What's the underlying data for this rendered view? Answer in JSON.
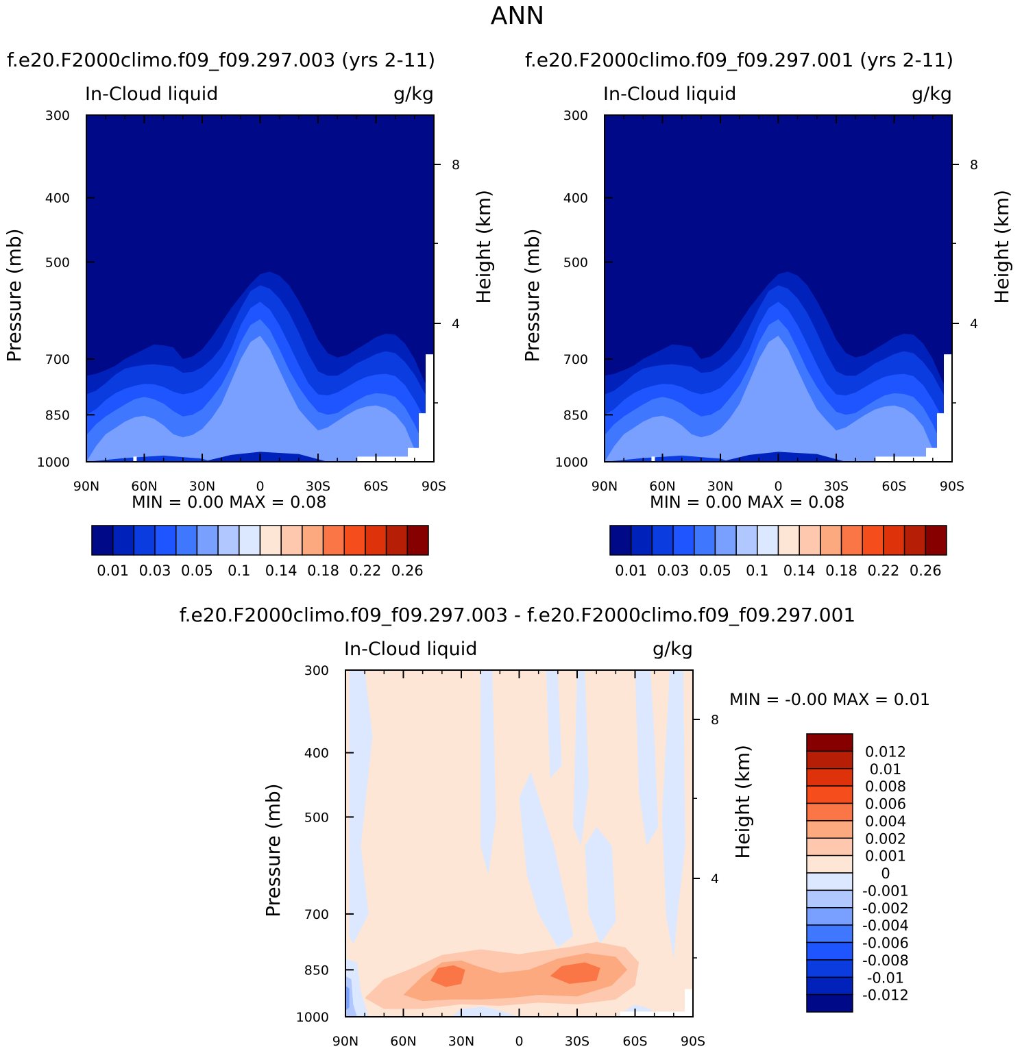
{
  "page": {
    "title": "ANN",
    "diff_title": "f.e20.F2000climo.f09_f09.297.003 - f.e20.F2000climo.f09_f09.297.001"
  },
  "chart_data": [
    {
      "type": "heatmap",
      "title": "f.e20.F2000climo.f09_f09.297.003 (yrs 2-11)",
      "left_label": "In-Cloud liquid",
      "right_label": "g/kg",
      "ylabel": "Pressure (mb)",
      "ylabel_right": "Height (km)",
      "x_ticks": [
        "90N",
        "60N",
        "30N",
        "0",
        "30S",
        "60S",
        "90S"
      ],
      "y_ticks": [
        "300",
        "400",
        "500",
        "700",
        "850",
        "1000"
      ],
      "y2_ticks": [
        "8",
        "4"
      ],
      "min_text": "MIN =    0.00   MAX =    0.08",
      "colorbar_labels": [
        "0.01",
        "0.03",
        "0.05",
        "0.1",
        "0.14",
        "0.18",
        "0.22",
        "0.26"
      ],
      "colorbar_colors": [
        "#000a88",
        "#0022bb",
        "#0a3ce0",
        "#1e55ff",
        "#3f78ff",
        "#7aa0ff",
        "#b0c8ff",
        "#dbe8ff",
        "#fde6d6",
        "#fdc8ae",
        "#fca980",
        "#fb7646",
        "#f54e1c",
        "#de320a",
        "#b61f05",
        "#860000"
      ],
      "fill_colors": [
        "#000a88",
        "#0022bb",
        "#0a3ce0",
        "#1e55ff",
        "#3f78ff",
        "#7aa0ff"
      ]
    },
    {
      "type": "heatmap",
      "title": "f.e20.F2000climo.f09_f09.297.001 (yrs 2-11)",
      "left_label": "In-Cloud liquid",
      "right_label": "g/kg",
      "ylabel": "Pressure (mb)",
      "ylabel_right": "Height (km)",
      "x_ticks": [
        "90N",
        "60N",
        "30N",
        "0",
        "30S",
        "60S",
        "90S"
      ],
      "y_ticks": [
        "300",
        "400",
        "500",
        "700",
        "850",
        "1000"
      ],
      "y2_ticks": [
        "8",
        "4"
      ],
      "min_text": "MIN =    0.00   MAX =    0.08",
      "colorbar_labels": [
        "0.01",
        "0.03",
        "0.05",
        "0.1",
        "0.14",
        "0.18",
        "0.22",
        "0.26"
      ],
      "colorbar_colors": [
        "#000a88",
        "#0022bb",
        "#0a3ce0",
        "#1e55ff",
        "#3f78ff",
        "#7aa0ff",
        "#b0c8ff",
        "#dbe8ff",
        "#fde6d6",
        "#fdc8ae",
        "#fca980",
        "#fb7646",
        "#f54e1c",
        "#de320a",
        "#b61f05",
        "#860000"
      ],
      "fill_colors": [
        "#000a88",
        "#0022bb",
        "#0a3ce0",
        "#1e55ff",
        "#3f78ff",
        "#7aa0ff"
      ]
    },
    {
      "type": "heatmap",
      "left_label": "In-Cloud liquid",
      "right_label": "g/kg",
      "ylabel": "Pressure (mb)",
      "ylabel_right": "Height (km)",
      "x_ticks": [
        "90N",
        "60N",
        "30N",
        "0",
        "30S",
        "60S",
        "90S"
      ],
      "y_ticks": [
        "300",
        "400",
        "500",
        "700",
        "850",
        "1000"
      ],
      "y2_ticks": [
        "8",
        "4"
      ],
      "min_text": "MIN =   -0.00   MAX =    0.01",
      "colorbar_labels": [
        "0.012",
        "0.01",
        "0.008",
        "0.006",
        "0.004",
        "0.002",
        "0.001",
        "0",
        "-0.001",
        "-0.002",
        "-0.004",
        "-0.006",
        "-0.008",
        "-0.01",
        "-0.012"
      ],
      "colorbar_colors": [
        "#860000",
        "#b61f05",
        "#de320a",
        "#f54e1c",
        "#fb7646",
        "#fca980",
        "#fdc8ae",
        "#fde6d6",
        "#dbe8ff",
        "#b0c8ff",
        "#7aa0ff",
        "#3f78ff",
        "#1e55ff",
        "#0a3ce0",
        "#0022bb",
        "#000a88"
      ]
    }
  ]
}
